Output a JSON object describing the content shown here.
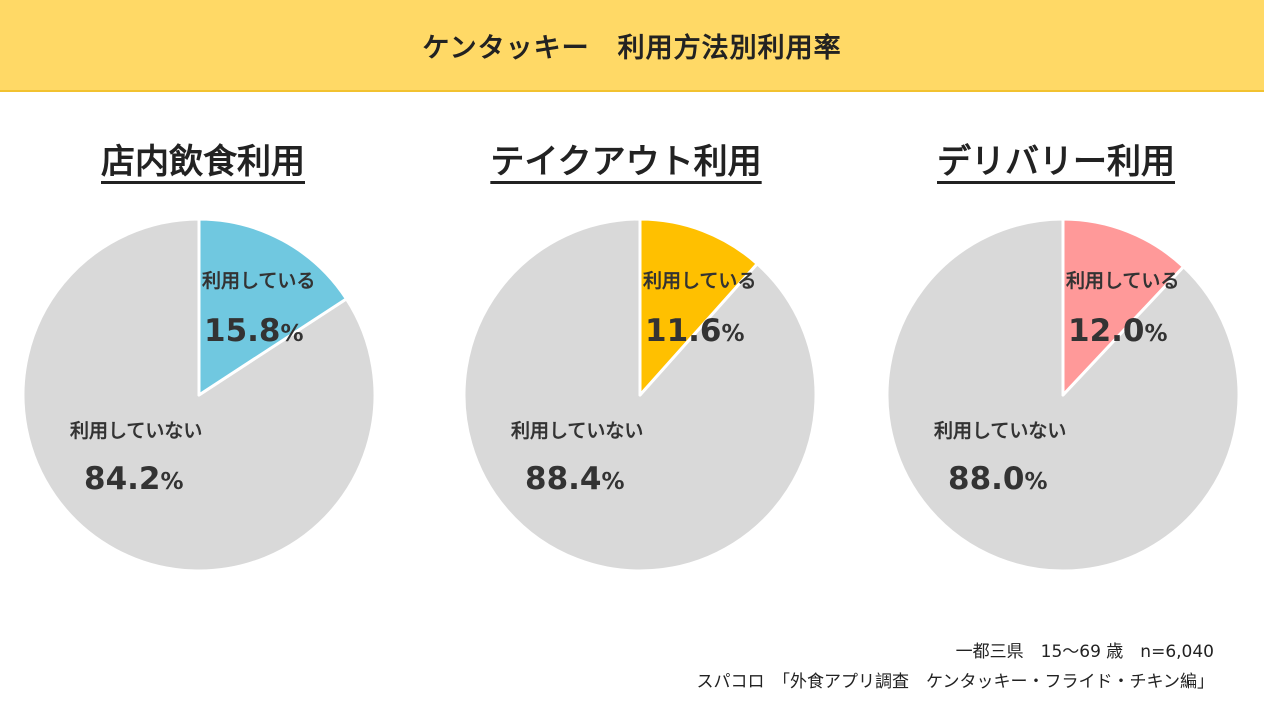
{
  "header": {
    "title": "ケンタッキー　利用方法別利用率"
  },
  "colors": {
    "header_bg": "#FFD966",
    "remainder": "#D9D9D9",
    "dine_in": "#70C8E0",
    "takeout": "#FFC000",
    "delivery": "#FF9999"
  },
  "chart_data": [
    {
      "type": "pie",
      "title": "店内飲食利用",
      "slices": [
        {
          "label": "利用している",
          "value": 15.8,
          "value_text": "15.8",
          "color": "#70C8E0"
        },
        {
          "label": "利用していない",
          "value": 84.2,
          "value_text": "84.2",
          "color": "#D9D9D9"
        }
      ],
      "unit": "%"
    },
    {
      "type": "pie",
      "title": "テイクアウト利用",
      "slices": [
        {
          "label": "利用している",
          "value": 11.6,
          "value_text": "11.6",
          "color": "#FFC000"
        },
        {
          "label": "利用していない",
          "value": 88.4,
          "value_text": "88.4",
          "color": "#D9D9D9"
        }
      ],
      "unit": "%"
    },
    {
      "type": "pie",
      "title": "デリバリー利用",
      "slices": [
        {
          "label": "利用している",
          "value": 12.0,
          "value_text": "12.0",
          "color": "#FF9999"
        },
        {
          "label": "利用していない",
          "value": 88.0,
          "value_text": "88.0",
          "color": "#D9D9D9"
        }
      ],
      "unit": "%"
    }
  ],
  "footer": {
    "sample": "一都三県　15～69 歳　n=6,040",
    "source": "スパコロ　「外食アプリ調査　ケンタッキー・フライド・チキン編」"
  }
}
